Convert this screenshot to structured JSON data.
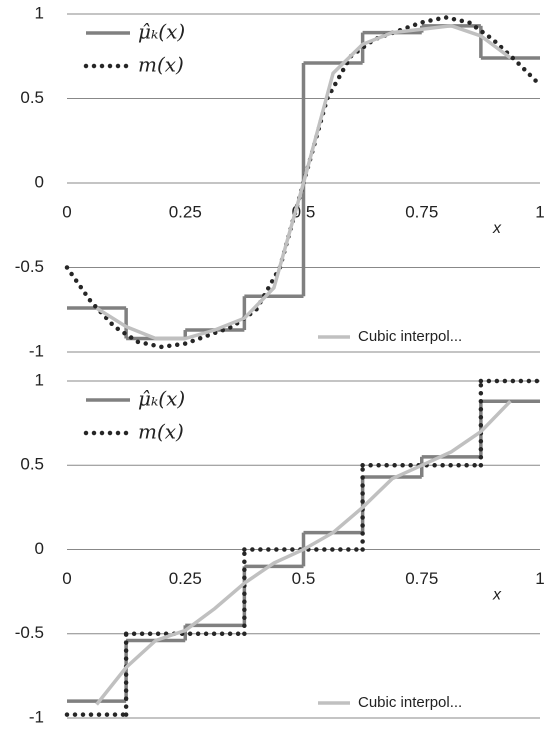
{
  "chart_data": [
    {
      "type": "line",
      "x_label": "x",
      "legend": "upper left",
      "xlim": [
        0,
        1
      ],
      "ylim": [
        -1,
        1
      ],
      "xticks": [
        0,
        0.25,
        0.5,
        0.75,
        1
      ],
      "yticks": [
        -1,
        -0.5,
        0,
        0.5,
        1
      ],
      "grid": true,
      "series": [
        {
          "name": "μ̂ₖ(x)",
          "style": "step",
          "color": "#808080",
          "bins": [
            0,
            0.125,
            0.25,
            0.375,
            0.5,
            0.625,
            0.75,
            0.875,
            1
          ],
          "values": [
            -0.74,
            -0.92,
            -0.87,
            -0.67,
            0.71,
            0.89,
            0.93,
            0.74
          ]
        },
        {
          "name": "m(x)",
          "style": "dotted",
          "color": "#262626",
          "x": [
            0,
            0.05,
            0.1,
            0.15,
            0.2,
            0.25,
            0.3,
            0.35,
            0.4,
            0.45,
            0.48,
            0.5,
            0.52,
            0.55,
            0.6,
            0.65,
            0.7,
            0.75,
            0.8,
            0.85,
            0.9,
            0.95,
            1
          ],
          "values": [
            -0.5,
            -0.7,
            -0.85,
            -0.94,
            -0.97,
            -0.95,
            -0.9,
            -0.85,
            -0.75,
            -0.5,
            -0.2,
            0,
            0.2,
            0.5,
            0.75,
            0.85,
            0.9,
            0.95,
            0.98,
            0.95,
            0.85,
            0.72,
            0.58
          ]
        },
        {
          "name": "Cubic interpol...",
          "style": "line",
          "color": "#c0c0c0",
          "legend": "lower right",
          "x": [
            0.0625,
            0.125,
            0.1875,
            0.25,
            0.3125,
            0.375,
            0.4375,
            0.5,
            0.5625,
            0.625,
            0.6875,
            0.75,
            0.8125,
            0.875,
            0.9375
          ],
          "values": [
            -0.74,
            -0.85,
            -0.92,
            -0.92,
            -0.87,
            -0.8,
            -0.62,
            0,
            0.65,
            0.82,
            0.89,
            0.91,
            0.93,
            0.87,
            0.74
          ]
        }
      ]
    },
    {
      "type": "line",
      "x_label": "x",
      "legend": "upper left",
      "xlim": [
        0,
        1
      ],
      "ylim": [
        -1,
        1
      ],
      "xticks": [
        0,
        0.25,
        0.5,
        0.75,
        1
      ],
      "yticks": [
        -1,
        -0.5,
        0,
        0.5,
        1
      ],
      "grid": true,
      "series": [
        {
          "name": "μ̂ₖ(x)",
          "style": "step",
          "color": "#808080",
          "bins": [
            0,
            0.125,
            0.25,
            0.375,
            0.5,
            0.625,
            0.75,
            0.875,
            1
          ],
          "values": [
            -0.9,
            -0.54,
            -0.45,
            -0.1,
            0.1,
            0.43,
            0.55,
            0.88
          ]
        },
        {
          "name": "m(x)",
          "style": "dotted-step",
          "color": "#262626",
          "bins": [
            0,
            0.125,
            0.375,
            0.625,
            0.875,
            1
          ],
          "values": [
            -0.98,
            -0.5,
            0,
            0.5,
            1
          ]
        },
        {
          "name": "Cubic interpol...",
          "style": "line",
          "color": "#c0c0c0",
          "legend": "lower right",
          "x": [
            0.0625,
            0.125,
            0.1875,
            0.25,
            0.3125,
            0.375,
            0.4375,
            0.5,
            0.5625,
            0.625,
            0.6875,
            0.75,
            0.8125,
            0.875,
            0.9375
          ],
          "values": [
            -0.92,
            -0.7,
            -0.54,
            -0.48,
            -0.35,
            -0.2,
            -0.08,
            0,
            0.1,
            0.25,
            0.42,
            0.5,
            0.58,
            0.7,
            0.88
          ]
        }
      ]
    }
  ]
}
